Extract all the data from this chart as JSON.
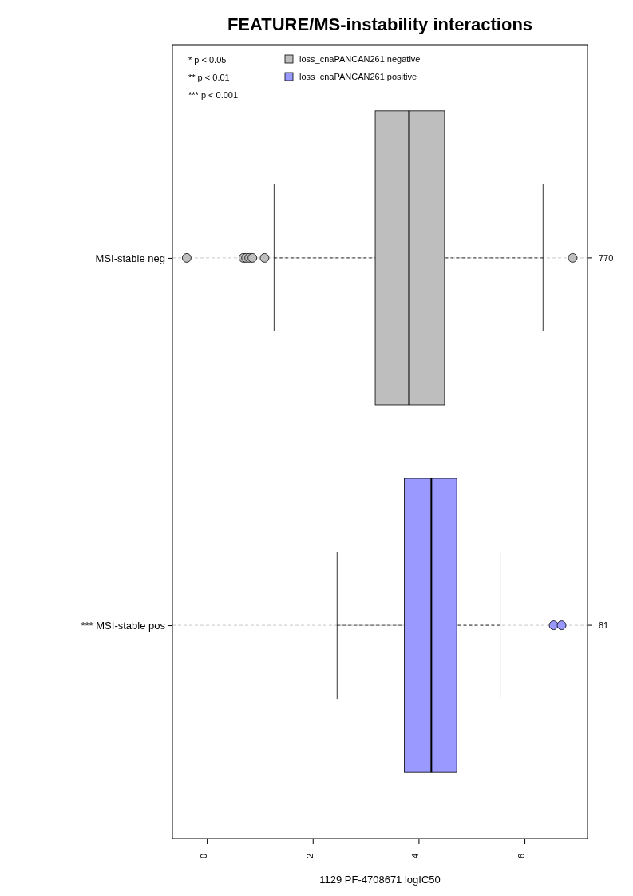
{
  "chart_data": {
    "type": "box",
    "orientation": "horizontal",
    "title": "FEATURE/MS-instability interactions",
    "xlabel": "1129 PF-4708671 logIC50",
    "categories": [
      "MSI-stable neg",
      "*** MSI-stable pos"
    ],
    "xlim": [
      -0.65,
      7.19
    ],
    "xticks": [
      0,
      2,
      4,
      6
    ],
    "grid": "y",
    "legend": "top left",
    "series": [
      {
        "name": "loss_cnaPANCAN261 negative",
        "color": "#bebebe",
        "boxes": [
          {
            "low": 1.27,
            "q1": 3.18,
            "median": 3.82,
            "q3": 4.49,
            "high": 6.35,
            "outliers": [
              -0.38,
              0.69,
              0.74,
              0.8,
              0.86,
              1.09,
              6.91
            ]
          },
          null
        ]
      },
      {
        "name": "loss_cnaPANCAN261 positive",
        "color": "#9999ff",
        "boxes": [
          null,
          {
            "low": 2.46,
            "q1": 3.73,
            "median": 4.24,
            "q3": 4.72,
            "high": 5.54,
            "outliers": [
              6.55,
              6.7
            ]
          }
        ]
      }
    ],
    "annotations": [
      "* p < 0.05",
      "** p < 0.01",
      "*** p < 0.001",
      "770",
      "81"
    ]
  }
}
